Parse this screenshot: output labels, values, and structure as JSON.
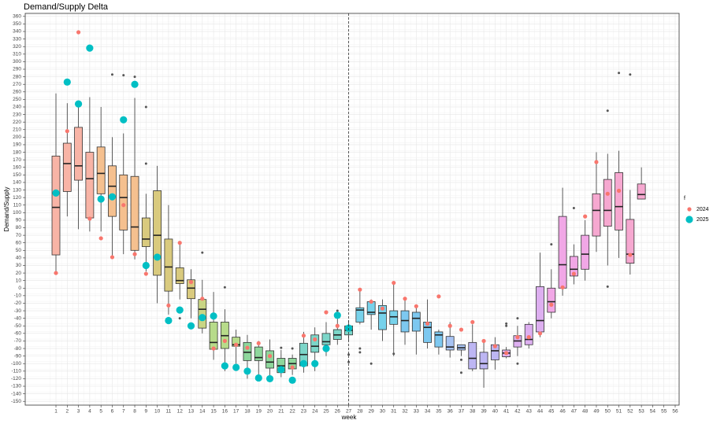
{
  "chart_data": {
    "type": "boxplot",
    "title": "Demand/Supply Delta",
    "x_label": "week",
    "y_label": "Demand/Supply",
    "legend_title": "f",
    "legend_position": "right",
    "grid": true,
    "vline": 27,
    "categories": [
      "1",
      "2",
      "3",
      "4",
      "5",
      "6",
      "7",
      "8",
      "9",
      "10",
      "11",
      "12",
      "13",
      "14",
      "15",
      "16",
      "17",
      "18",
      "19",
      "20",
      "21",
      "22",
      "23",
      "24",
      "25",
      "26",
      "27",
      "28",
      "29",
      "30",
      "31",
      "32",
      "33",
      "34",
      "35",
      "36",
      "37",
      "38",
      "39",
      "40",
      "41",
      "42",
      "43",
      "44",
      "45",
      "46",
      "47",
      "48",
      "49",
      "50",
      "51",
      "52",
      "53",
      "54",
      "55",
      "56"
    ],
    "ylim": [
      -155,
      364
    ],
    "yticks": [
      -150,
      -140,
      -130,
      -120,
      -110,
      -100,
      -90,
      -80,
      -70,
      -60,
      -50,
      -40,
      -30,
      -20,
      -10,
      0,
      10,
      20,
      30,
      40,
      50,
      60,
      70,
      80,
      90,
      100,
      110,
      120,
      130,
      140,
      150,
      160,
      170,
      180,
      190,
      200,
      210,
      220,
      230,
      240,
      250,
      260,
      270,
      280,
      290,
      300,
      310,
      320,
      330,
      340,
      350,
      360
    ],
    "boxes": [
      {
        "low": 20,
        "q1": 44,
        "median": 107,
        "q3": 175,
        "high": 258,
        "outliers": [],
        "color": "#F8B4A6"
      },
      {
        "low": 95,
        "q1": 128,
        "median": 165,
        "q3": 192,
        "high": 245,
        "outliers": [],
        "color": "#F8B4A6"
      },
      {
        "low": 78,
        "q1": 143,
        "median": 162,
        "q3": 213,
        "high": 240,
        "outliers": [],
        "color": "#F8B4A6"
      },
      {
        "low": 75,
        "q1": 93,
        "median": 145,
        "q3": 180,
        "high": 253,
        "outliers": [],
        "color": "#F8B4A6"
      },
      {
        "low": 75,
        "q1": 125,
        "median": 152,
        "q3": 187,
        "high": 240,
        "outliers": [],
        "color": "#F5C08F"
      },
      {
        "low": 41,
        "q1": 95,
        "median": 135,
        "q3": 162,
        "high": 200,
        "outliers": [
          283
        ],
        "color": "#F5C08F"
      },
      {
        "low": 45,
        "q1": 77,
        "median": 120,
        "q3": 150,
        "high": 205,
        "outliers": [
          282
        ],
        "color": "#F5C08F"
      },
      {
        "low": 38,
        "q1": 50,
        "median": 81,
        "q3": 148,
        "high": 252,
        "outliers": [
          280
        ],
        "color": "#F5C08F"
      },
      {
        "low": 22,
        "q1": 55,
        "median": 65,
        "q3": 93,
        "high": 125,
        "outliers": [
          240,
          165
        ],
        "color": "#D9CA7E"
      },
      {
        "low": -20,
        "q1": 17,
        "median": 70,
        "q3": 129,
        "high": 162,
        "outliers": [],
        "color": "#D9CA7E"
      },
      {
        "low": -35,
        "q1": -4,
        "median": 28,
        "q3": 65,
        "high": 110,
        "outliers": [],
        "color": "#D9CA7E"
      },
      {
        "low": -15,
        "q1": 6,
        "median": 10,
        "q3": 27,
        "high": 62,
        "outliers": [
          -40
        ],
        "color": "#D9CA7E"
      },
      {
        "low": -40,
        "q1": -14,
        "median": 0,
        "q3": 11,
        "high": 25,
        "outliers": [],
        "color": "#D9CA7E"
      },
      {
        "low": -60,
        "q1": -53,
        "median": -28,
        "q3": -15,
        "high": 11,
        "outliers": [
          47
        ],
        "color": "#C9D584"
      },
      {
        "low": -95,
        "q1": -81,
        "median": -72,
        "q3": -45,
        "high": -5,
        "outliers": [],
        "color": "#B7DB8A"
      },
      {
        "low": -110,
        "q1": -80,
        "median": -63,
        "q3": -45,
        "high": -28,
        "outliers": [
          1
        ],
        "color": "#B7DB8A"
      },
      {
        "low": -100,
        "q1": -77,
        "median": -75,
        "q3": -65,
        "high": -55,
        "outliers": [],
        "color": "#B7DB8A"
      },
      {
        "low": -120,
        "q1": -96,
        "median": -85,
        "q3": -72,
        "high": -62,
        "outliers": [],
        "color": "#8ED79C"
      },
      {
        "low": -115,
        "q1": -96,
        "median": -92,
        "q3": -78,
        "high": -70,
        "outliers": [],
        "color": "#8ED79C"
      },
      {
        "low": -120,
        "q1": -106,
        "median": -98,
        "q3": -83,
        "high": -68,
        "outliers": [],
        "color": "#8ED79C"
      },
      {
        "low": -118,
        "q1": -112,
        "median": -103,
        "q3": -93,
        "high": -82,
        "outliers": [
          -79
        ],
        "color": "#8ED79C"
      },
      {
        "low": -115,
        "q1": -107,
        "median": -100,
        "q3": -93,
        "high": -88,
        "outliers": [
          -80
        ],
        "color": "#8ED79C"
      },
      {
        "low": -112,
        "q1": -103,
        "median": -88,
        "q3": -73,
        "high": -58,
        "outliers": [],
        "color": "#7CD6C9"
      },
      {
        "low": -110,
        "q1": -85,
        "median": -77,
        "q3": -62,
        "high": -52,
        "outliers": [],
        "color": "#7CD6C9"
      },
      {
        "low": -90,
        "q1": -75,
        "median": -71,
        "q3": -60,
        "high": -45,
        "outliers": [],
        "color": "#7CD6C9"
      },
      {
        "low": -75,
        "q1": -68,
        "median": -62,
        "q3": -55,
        "high": -40,
        "outliers": [
          -30
        ],
        "color": "#7CD6C9"
      },
      {
        "low": -70,
        "q1": -62,
        "median": -56,
        "q3": -50,
        "high": -43,
        "outliers": [
          -88,
          -98
        ],
        "color": "#7CD6C9"
      },
      {
        "low": -48,
        "q1": -45,
        "median": -29,
        "q3": -26,
        "high": -3,
        "outliers": [
          -80,
          -85
        ],
        "color": "#77D2EB"
      },
      {
        "low": -55,
        "q1": -35,
        "median": -32,
        "q3": -18,
        "high": -15,
        "outliers": [
          -100
        ],
        "color": "#77D2EB"
      },
      {
        "low": -70,
        "q1": -55,
        "median": -33,
        "q3": -23,
        "high": -15,
        "outliers": [],
        "color": "#77D2EB"
      },
      {
        "low": -90,
        "q1": -48,
        "median": -38,
        "q3": -30,
        "high": 5,
        "outliers": [
          -87
        ],
        "color": "#77D2EB"
      },
      {
        "low": -75,
        "q1": -58,
        "median": -43,
        "q3": -30,
        "high": -13,
        "outliers": [],
        "color": "#7DC8F0"
      },
      {
        "low": -88,
        "q1": -57,
        "median": -40,
        "q3": -32,
        "high": -25,
        "outliers": [],
        "color": "#7DC8F0"
      },
      {
        "low": -80,
        "q1": -72,
        "median": -52,
        "q3": -45,
        "high": -15,
        "outliers": [],
        "color": "#7DC8F0"
      },
      {
        "low": -88,
        "q1": -78,
        "median": -62,
        "q3": -58,
        "high": -55,
        "outliers": [],
        "color": "#7DC8F0"
      },
      {
        "low": -92,
        "q1": -82,
        "median": -78,
        "q3": -64,
        "high": -45,
        "outliers": [],
        "color": "#A7C3F3"
      },
      {
        "low": -90,
        "q1": -82,
        "median": -79,
        "q3": -75,
        "high": -75,
        "outliers": [
          -95,
          -112
        ],
        "color": "#A7C3F3"
      },
      {
        "low": -110,
        "q1": -107,
        "median": -93,
        "q3": -72,
        "high": -48,
        "outliers": [],
        "color": "#BDB6F3"
      },
      {
        "low": -132,
        "q1": -107,
        "median": -100,
        "q3": -85,
        "high": -72,
        "outliers": [],
        "color": "#BDB6F3"
      },
      {
        "low": -108,
        "q1": -95,
        "median": -83,
        "q3": -75,
        "high": -65,
        "outliers": [],
        "color": "#BDB6F3"
      },
      {
        "low": -93,
        "q1": -91,
        "median": -86,
        "q3": -82,
        "high": -78,
        "outliers": [
          -47,
          -50
        ],
        "color": "#DDAFF0"
      },
      {
        "low": -90,
        "q1": -78,
        "median": -70,
        "q3": -63,
        "high": -50,
        "outliers": [
          -40,
          -100
        ],
        "color": "#DDAFF0"
      },
      {
        "low": -80,
        "q1": -75,
        "median": -68,
        "q3": -48,
        "high": -45,
        "outliers": [],
        "color": "#DDAFF0"
      },
      {
        "low": -65,
        "q1": -58,
        "median": -43,
        "q3": 2,
        "high": 47,
        "outliers": [],
        "color": "#DDAFF0"
      },
      {
        "low": -40,
        "q1": -32,
        "median": -18,
        "q3": 0,
        "high": 25,
        "outliers": [
          58
        ],
        "color": "#F1A7E6"
      },
      {
        "low": -10,
        "q1": 0,
        "median": 31,
        "q3": 95,
        "high": 133,
        "outliers": [],
        "color": "#F1A7E6"
      },
      {
        "low": 5,
        "q1": 16,
        "median": 25,
        "q3": 42,
        "high": 58,
        "outliers": [
          106
        ],
        "color": "#F1A7E6"
      },
      {
        "low": 10,
        "q1": 25,
        "median": 45,
        "q3": 70,
        "high": 90,
        "outliers": [],
        "color": "#F1A7E6"
      },
      {
        "low": 48,
        "q1": 69,
        "median": 103,
        "q3": 125,
        "high": 180,
        "outliers": [],
        "color": "#F6A8D0"
      },
      {
        "low": 30,
        "q1": 82,
        "median": 103,
        "q3": 144,
        "high": 178,
        "outliers": [
          235,
          2
        ],
        "color": "#F6A8D0"
      },
      {
        "low": 40,
        "q1": 77,
        "median": 108,
        "q3": 153,
        "high": 182,
        "outliers": [
          285
        ],
        "color": "#F6A8D0"
      },
      {
        "low": 18,
        "q1": 33,
        "median": 45,
        "q3": 91,
        "high": 130,
        "outliers": [
          283
        ],
        "color": "#F6A8D0"
      },
      {
        "low": 118,
        "q1": 118,
        "median": 124,
        "q3": 138,
        "high": 160,
        "outliers": [],
        "color": "#F6A8D0"
      },
      null,
      null,
      null
    ],
    "series": [
      {
        "name": "2024",
        "color": "#F8766D",
        "values": [
          20,
          208,
          339,
          92,
          66,
          41,
          110,
          45,
          19,
          40,
          -23,
          60,
          8,
          -14,
          -80,
          -70,
          -75,
          -79,
          -73,
          -90,
          -110,
          -105,
          -63,
          -68,
          -32,
          -50,
          -52,
          -2,
          -18,
          -27,
          7,
          -14,
          -24,
          -47,
          -11,
          -50,
          -55,
          -45,
          -70,
          -77,
          -86,
          -65,
          -65,
          -60,
          -22,
          1,
          19,
          95,
          167,
          125,
          129,
          44,
          null,
          null,
          null,
          null
        ]
      },
      {
        "name": "2025",
        "color": "#00BFC4",
        "values": [
          126,
          273,
          244,
          318,
          118,
          121,
          223,
          270,
          30,
          41,
          -43,
          -29,
          -50,
          -39,
          -37,
          -103,
          -105,
          -110,
          -119,
          -120,
          -108,
          -122,
          -100,
          -100,
          -80,
          -36,
          -53,
          null,
          null,
          null,
          null,
          null,
          null,
          null,
          null,
          null,
          null,
          null,
          null,
          null,
          null,
          null,
          null,
          null,
          null,
          null,
          null,
          null,
          null,
          null,
          null,
          null,
          null,
          null,
          null,
          null
        ]
      }
    ]
  }
}
